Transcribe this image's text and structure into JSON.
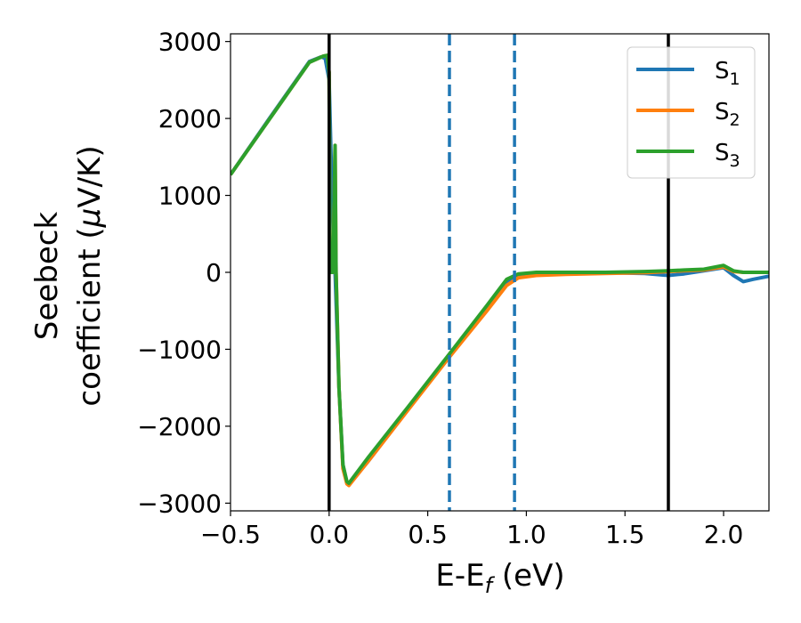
{
  "chart_data": {
    "type": "line",
    "xlabel": {
      "main": "E-E",
      "sub": "f",
      "unit": " (eV)"
    },
    "ylabel": {
      "line1": "Seebeck",
      "line2_text": "coefficient  (",
      "mu": "μ",
      "unit": "V/K)"
    },
    "xlim": [
      -0.5,
      2.23
    ],
    "ylim": [
      -3100,
      3100
    ],
    "xticks": [
      -0.5,
      0.0,
      0.5,
      1.0,
      1.5,
      2.0
    ],
    "xtick_labels": [
      "−0.5",
      "0.0",
      "0.5",
      "1.0",
      "1.5",
      "2.0"
    ],
    "yticks": [
      -3000,
      -2000,
      -1000,
      0,
      1000,
      2000,
      3000
    ],
    "ytick_labels": [
      "−3000",
      "−2000",
      "−1000",
      "0",
      "1000",
      "2000",
      "3000"
    ],
    "grid": false,
    "legend_position": "top-right",
    "vlines": [
      {
        "x": 0.0,
        "style": "solid",
        "color": "#000000"
      },
      {
        "x": 1.72,
        "style": "solid",
        "color": "#000000"
      },
      {
        "x": 0.61,
        "style": "dashed",
        "color": "#1f77b4"
      },
      {
        "x": 0.94,
        "style": "dashed",
        "color": "#1f77b4"
      }
    ],
    "series": [
      {
        "name": "S",
        "sub": "1",
        "color": "#1f77b4",
        "points": [
          [
            -0.5,
            1270
          ],
          [
            -0.3,
            2010
          ],
          [
            -0.1,
            2740
          ],
          [
            -0.04,
            2800
          ],
          [
            -0.02,
            2780
          ],
          [
            0.0,
            2500
          ],
          [
            0.01,
            1500
          ],
          [
            0.03,
            0
          ],
          [
            0.05,
            -1500
          ],
          [
            0.07,
            -2500
          ],
          [
            0.09,
            -2740
          ],
          [
            0.1,
            -2760
          ],
          [
            0.2,
            -2450
          ],
          [
            0.4,
            -1780
          ],
          [
            0.61,
            -1080
          ],
          [
            0.8,
            -480
          ],
          [
            0.9,
            -140
          ],
          [
            0.96,
            -50
          ],
          [
            1.05,
            -20
          ],
          [
            1.2,
            -10
          ],
          [
            1.4,
            -5
          ],
          [
            1.6,
            -15
          ],
          [
            1.72,
            -40
          ],
          [
            1.8,
            -20
          ],
          [
            1.9,
            20
          ],
          [
            2.0,
            60
          ],
          [
            2.05,
            -40
          ],
          [
            2.1,
            -120
          ],
          [
            2.15,
            -90
          ],
          [
            2.23,
            -50
          ]
        ]
      },
      {
        "name": "S",
        "sub": "2",
        "color": "#ff7f0e",
        "points": [
          [
            -0.5,
            1270
          ],
          [
            -0.3,
            2000
          ],
          [
            -0.1,
            2730
          ],
          [
            -0.03,
            2810
          ],
          [
            -0.01,
            2820
          ],
          [
            0.0,
            2600
          ],
          [
            0.005,
            0
          ],
          [
            0.02,
            0
          ],
          [
            0.03,
            1650
          ],
          [
            0.035,
            0
          ],
          [
            0.05,
            -1500
          ],
          [
            0.07,
            -2550
          ],
          [
            0.09,
            -2750
          ],
          [
            0.1,
            -2770
          ],
          [
            0.2,
            -2450
          ],
          [
            0.4,
            -1790
          ],
          [
            0.61,
            -1100
          ],
          [
            0.8,
            -500
          ],
          [
            0.9,
            -170
          ],
          [
            0.96,
            -70
          ],
          [
            1.05,
            -40
          ],
          [
            1.2,
            -25
          ],
          [
            1.4,
            -15
          ],
          [
            1.6,
            -5
          ],
          [
            1.72,
            10
          ],
          [
            1.8,
            20
          ],
          [
            1.9,
            30
          ],
          [
            2.0,
            70
          ],
          [
            2.05,
            10
          ],
          [
            2.1,
            0
          ],
          [
            2.23,
            0
          ]
        ]
      },
      {
        "name": "S",
        "sub": "3",
        "color": "#2ca02c",
        "points": [
          [
            -0.5,
            1270
          ],
          [
            -0.3,
            2000
          ],
          [
            -0.1,
            2730
          ],
          [
            -0.03,
            2810
          ],
          [
            -0.01,
            2820
          ],
          [
            0.0,
            2600
          ],
          [
            0.005,
            0
          ],
          [
            0.02,
            0
          ],
          [
            0.03,
            1650
          ],
          [
            0.035,
            0
          ],
          [
            0.05,
            -1500
          ],
          [
            0.07,
            -2500
          ],
          [
            0.09,
            -2720
          ],
          [
            0.1,
            -2740
          ],
          [
            0.2,
            -2400
          ],
          [
            0.4,
            -1750
          ],
          [
            0.61,
            -1060
          ],
          [
            0.8,
            -430
          ],
          [
            0.9,
            -90
          ],
          [
            0.96,
            -20
          ],
          [
            1.05,
            0
          ],
          [
            1.2,
            0
          ],
          [
            1.4,
            0
          ],
          [
            1.6,
            10
          ],
          [
            1.72,
            20
          ],
          [
            1.8,
            30
          ],
          [
            1.9,
            40
          ],
          [
            2.0,
            90
          ],
          [
            2.05,
            20
          ],
          [
            2.1,
            0
          ],
          [
            2.23,
            0
          ]
        ]
      }
    ]
  }
}
